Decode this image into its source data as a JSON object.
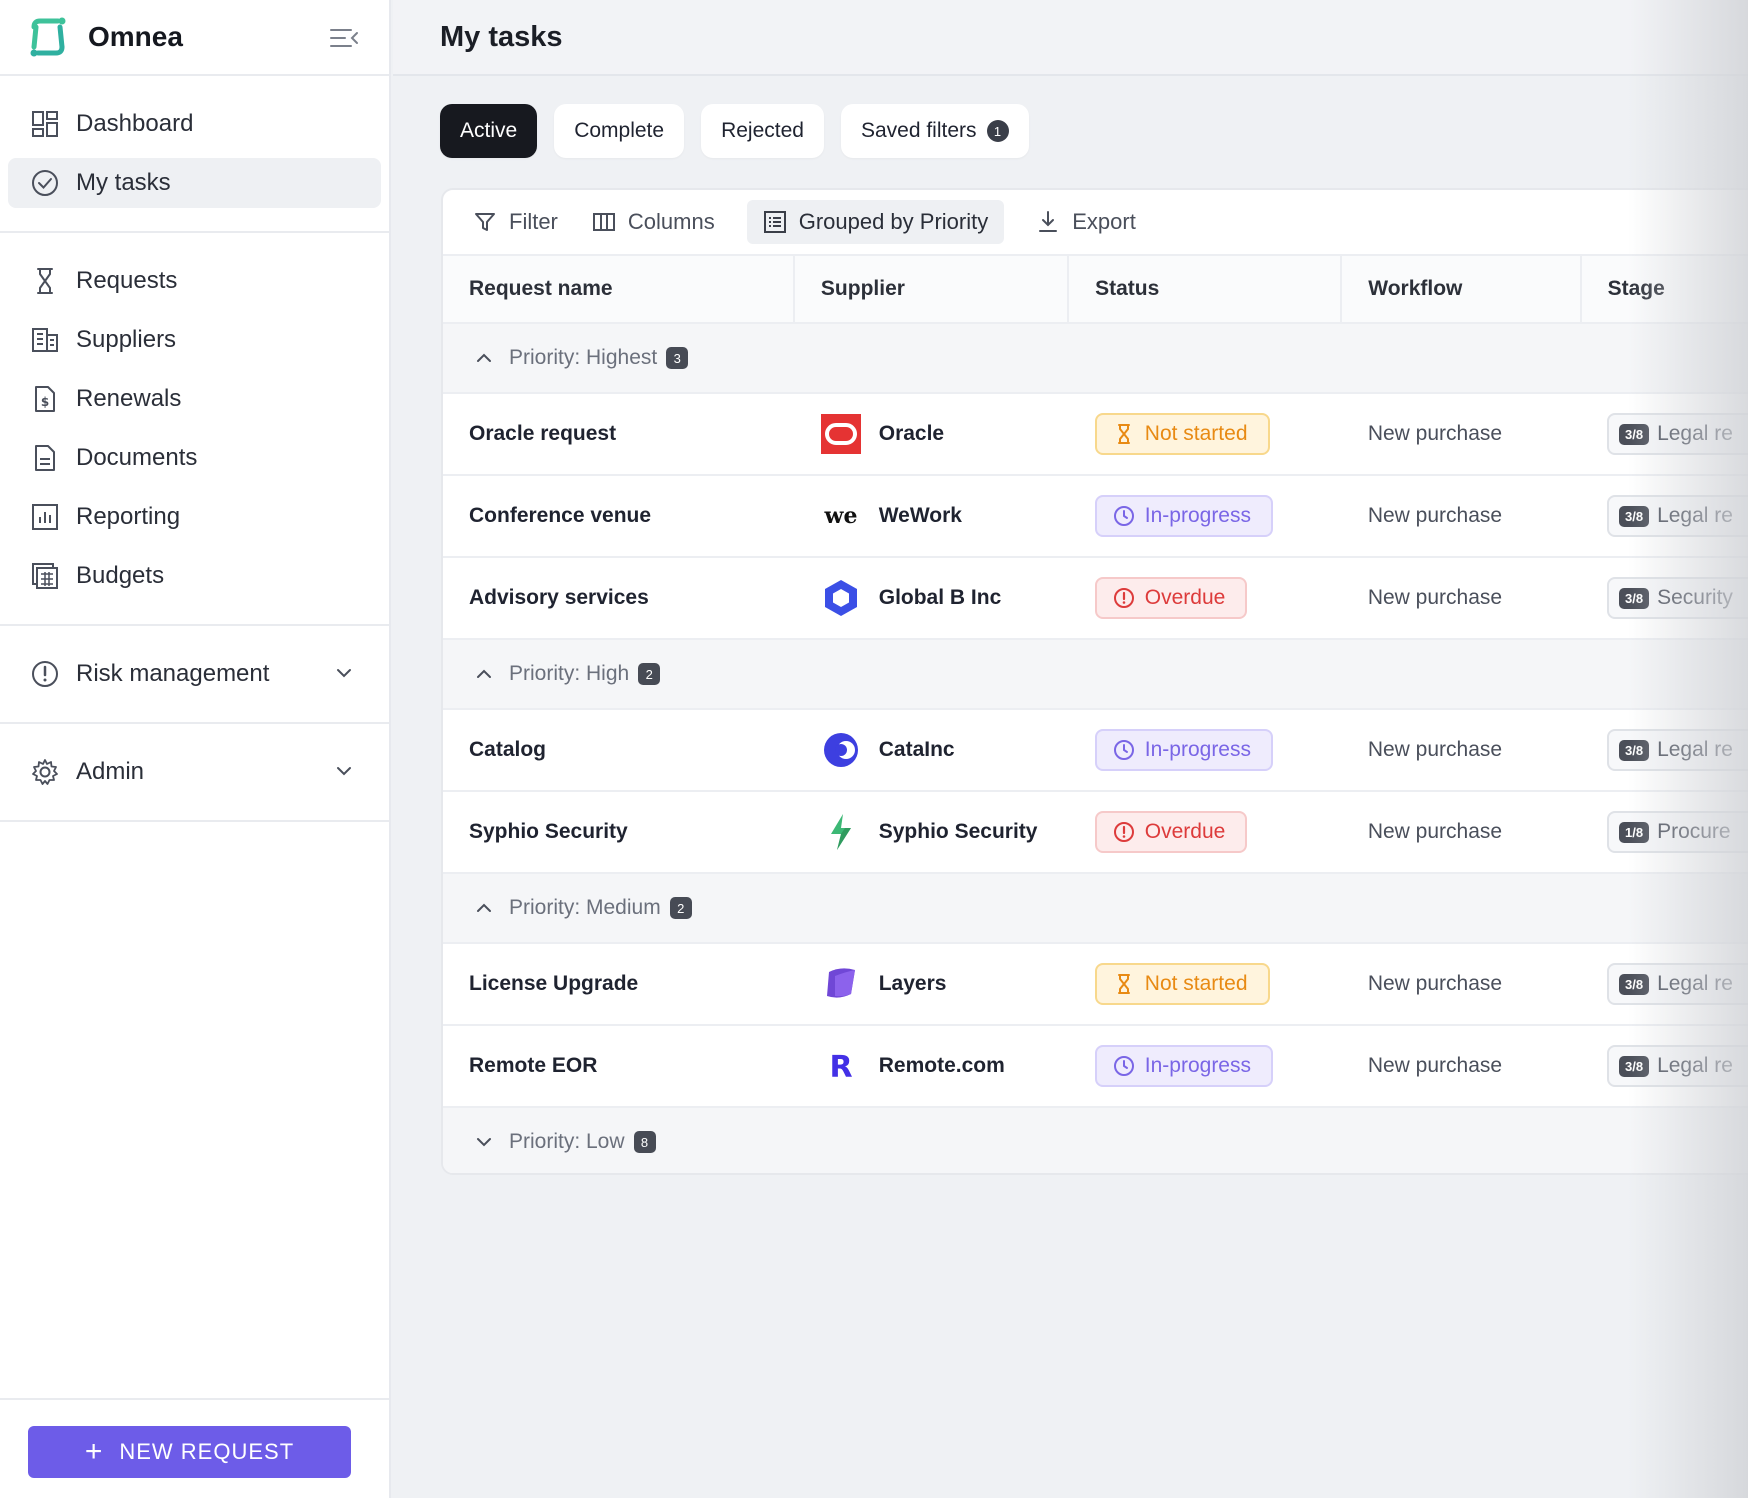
{
  "app": {
    "name": "Omnea"
  },
  "sidebar": {
    "primary": [
      {
        "label": "Dashboard",
        "icon": "dashboard-icon",
        "active": false
      },
      {
        "label": "My tasks",
        "icon": "check-circle-icon",
        "active": true
      }
    ],
    "secondary": [
      {
        "label": "Requests",
        "icon": "hourglass-icon"
      },
      {
        "label": "Suppliers",
        "icon": "building-icon"
      },
      {
        "label": "Renewals",
        "icon": "dollar-document-icon"
      },
      {
        "label": "Documents",
        "icon": "document-icon"
      },
      {
        "label": "Reporting",
        "icon": "chart-icon"
      },
      {
        "label": "Budgets",
        "icon": "calculator-icon"
      }
    ],
    "risk": {
      "label": "Risk management",
      "icon": "alert-circle-icon"
    },
    "admin": {
      "label": "Admin",
      "icon": "gear-icon"
    },
    "new_request": "NEW REQUEST"
  },
  "header": {
    "title": "My tasks"
  },
  "tabs": [
    {
      "label": "Active",
      "active": true
    },
    {
      "label": "Complete"
    },
    {
      "label": "Rejected"
    },
    {
      "label": "Saved filters",
      "badge": "1"
    }
  ],
  "toolbar": {
    "filter": "Filter",
    "columns": "Columns",
    "grouped": "Grouped by Priority",
    "export": "Export"
  },
  "table": {
    "headers": [
      "Request name",
      "Supplier",
      "Status",
      "Workflow",
      "Stage"
    ],
    "groups": [
      {
        "label": "Priority: Highest",
        "count": "3",
        "expanded": true,
        "rows": [
          {
            "name": "Oracle request",
            "supplier": "Oracle",
            "logo": "oracle",
            "status": "Not started",
            "status_type": "notstarted",
            "workflow": "New purchase",
            "stage_frac": "3/8",
            "stage": "Legal re"
          },
          {
            "name": "Conference venue",
            "supplier": "WeWork",
            "logo": "wework",
            "status": "In-progress",
            "status_type": "inprogress",
            "workflow": "New purchase",
            "stage_frac": "3/8",
            "stage": "Legal re"
          },
          {
            "name": "Advisory services",
            "supplier": "Global B Inc",
            "logo": "globalb",
            "status": "Overdue",
            "status_type": "overdue",
            "workflow": "New purchase",
            "stage_frac": "3/8",
            "stage": "Security"
          }
        ]
      },
      {
        "label": "Priority: High",
        "count": "2",
        "expanded": true,
        "rows": [
          {
            "name": "Catalog",
            "supplier": "CataInc",
            "logo": "catainc",
            "status": "In-progress",
            "status_type": "inprogress",
            "workflow": "New purchase",
            "stage_frac": "3/8",
            "stage": "Legal re"
          },
          {
            "name": "Syphio Security",
            "supplier": "Syphio Security",
            "logo": "syphio",
            "status": "Overdue",
            "status_type": "overdue",
            "workflow": "New purchase",
            "stage_frac": "1/8",
            "stage": "Procure"
          }
        ]
      },
      {
        "label": "Priority: Medium",
        "count": "2",
        "expanded": true,
        "rows": [
          {
            "name": "License Upgrade",
            "supplier": "Layers",
            "logo": "layers",
            "status": "Not started",
            "status_type": "notstarted",
            "workflow": "New purchase",
            "stage_frac": "3/8",
            "stage": "Legal re"
          },
          {
            "name": "Remote EOR",
            "supplier": "Remote.com",
            "logo": "remote",
            "status": "In-progress",
            "status_type": "inprogress",
            "workflow": "New purchase",
            "stage_frac": "3/8",
            "stage": "Legal re"
          }
        ]
      },
      {
        "label": "Priority: Low",
        "count": "8",
        "expanded": false,
        "rows": []
      }
    ]
  },
  "colors": {
    "accent": "#6d5ce8",
    "dark": "#17191f",
    "notstarted": "#e88a13",
    "inprogress": "#7a66e6",
    "overdue": "#dd3b3b"
  }
}
